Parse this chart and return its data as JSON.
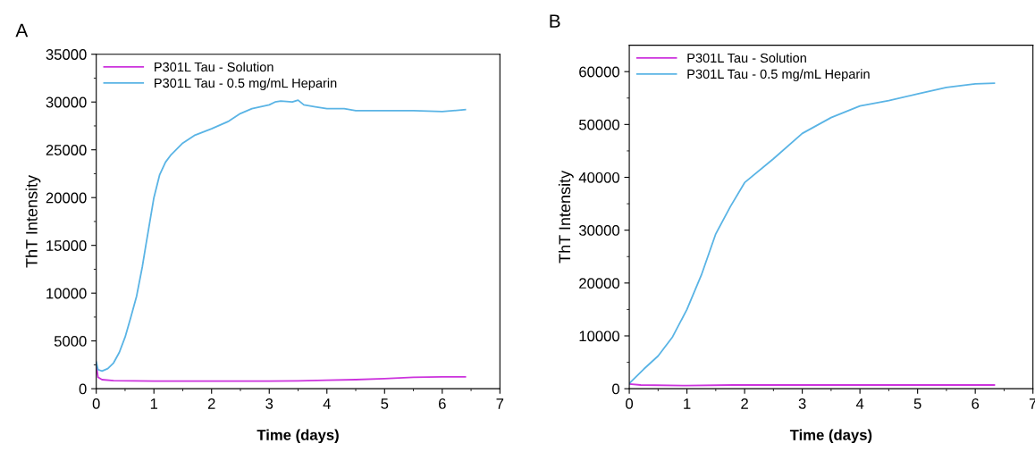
{
  "chart_data": [
    {
      "type": "line",
      "title": "A",
      "xlabel": "Time (days)",
      "ylabel": "ThT Intensity",
      "xlim": [
        0,
        7
      ],
      "xticks": [
        0,
        1,
        2,
        3,
        4,
        5,
        6,
        7
      ],
      "ylim": [
        0,
        35000
      ],
      "yticks": [
        0,
        5000,
        10000,
        15000,
        20000,
        25000,
        30000,
        35000
      ],
      "legend": "top left",
      "grid": false,
      "series": [
        {
          "name": "P301L Tau - Solution",
          "color": "#cc33dd",
          "x": [
            0,
            0.03,
            0.1,
            0.3,
            1,
            2,
            3,
            3.5,
            4,
            4.5,
            5,
            5.5,
            6,
            6.4
          ],
          "values": [
            2500,
            1200,
            950,
            850,
            800,
            800,
            800,
            820,
            900,
            950,
            1050,
            1200,
            1250,
            1250
          ]
        },
        {
          "name": "P301L Tau - 0.5 mg/mL Heparin",
          "color": "#5ab4e5",
          "x": [
            0,
            0.03,
            0.1,
            0.2,
            0.3,
            0.4,
            0.5,
            0.6,
            0.7,
            0.8,
            0.86,
            1.0,
            1.1,
            1.2,
            1.3,
            1.5,
            1.7,
            2.0,
            2.3,
            2.5,
            2.7,
            3.0,
            3.1,
            3.2,
            3.4,
            3.5,
            3.6,
            3.8,
            4.0,
            4.3,
            4.5,
            5.0,
            5.5,
            6.0,
            6.4
          ],
          "values": [
            2800,
            2000,
            1850,
            2100,
            2700,
            3800,
            5400,
            7500,
            9700,
            12800,
            15000,
            20000,
            22400,
            23700,
            24500,
            25700,
            26500,
            27200,
            28000,
            28800,
            29300,
            29700,
            30000,
            30100,
            30000,
            30200,
            29700,
            29500,
            29300,
            29300,
            29100,
            29100,
            29100,
            29000,
            29200
          ]
        }
      ]
    },
    {
      "type": "line",
      "title": "B",
      "xlabel": "Time (days)",
      "ylabel": "ThT Intensity",
      "xlim": [
        0,
        7
      ],
      "xticks": [
        0,
        1,
        2,
        3,
        4,
        5,
        6,
        7
      ],
      "ylim": [
        0,
        65000
      ],
      "yticks": [
        0,
        10000,
        20000,
        30000,
        40000,
        50000,
        60000
      ],
      "legend": "top left",
      "grid": false,
      "series": [
        {
          "name": "P301L Tau - Solution",
          "color": "#cc33dd",
          "x": [
            0,
            0.2,
            1,
            1.8,
            3,
            6.33
          ],
          "values": [
            900,
            700,
            600,
            700,
            700,
            700
          ]
        },
        {
          "name": "P301L Tau - 0.5 mg/mL Heparin",
          "color": "#5ab4e5",
          "x": [
            0,
            0.25,
            0.5,
            0.75,
            1,
            1.25,
            1.5,
            1.75,
            2,
            2.5,
            3,
            3.5,
            4,
            4.5,
            5,
            5.5,
            6,
            6.33
          ],
          "values": [
            1000,
            3700,
            6200,
            9800,
            15000,
            21500,
            29300,
            34400,
            39000,
            43500,
            48300,
            51300,
            53500,
            54500,
            55800,
            57000,
            57700,
            57800
          ]
        }
      ]
    }
  ]
}
